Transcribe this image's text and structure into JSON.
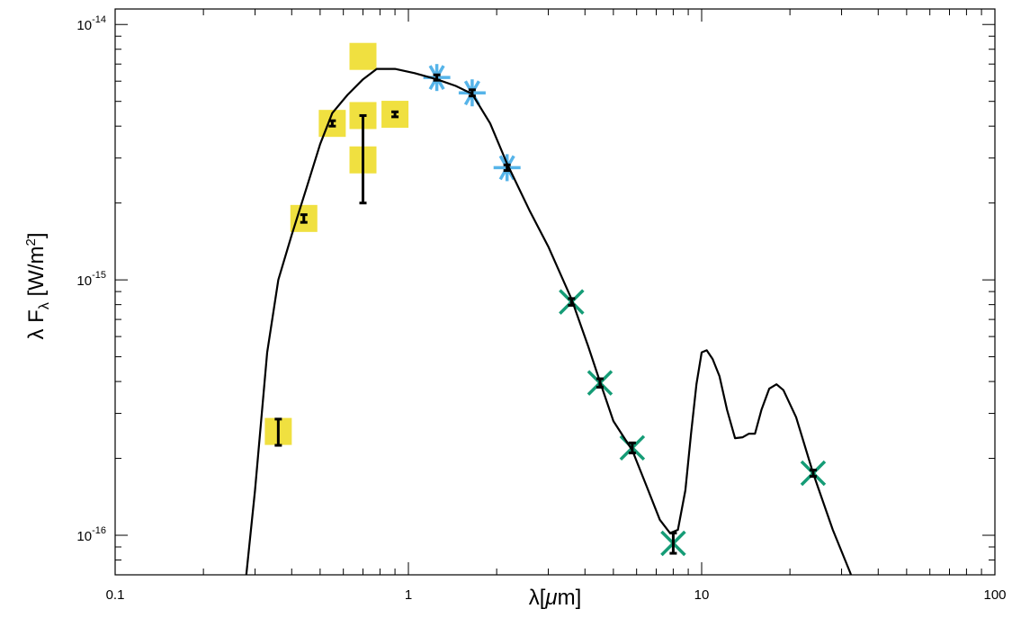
{
  "chart_data": {
    "type": "scatter",
    "xscale": "log",
    "yscale": "log",
    "xlim": [
      0.1,
      100
    ],
    "ylim": [
      7e-17,
      1.15e-14
    ],
    "grid": false,
    "legend": "none",
    "xlabel": {
      "base": "λ[",
      "mu": "μ",
      "rest": "m]"
    },
    "ylabel": {
      "lambda": "λ F",
      "sub": "λ",
      "open": " [W/m",
      "sup": "2",
      "close": "]"
    },
    "x_ticks": [
      {
        "value": 0.1,
        "label": "0.1"
      },
      {
        "value": 1,
        "label": "1"
      },
      {
        "value": 10,
        "label": "10"
      },
      {
        "value": 100,
        "label": "100"
      }
    ],
    "y_ticks": [
      {
        "value": 1e-14,
        "base": "10",
        "exp": "-14"
      },
      {
        "value": 1e-15,
        "base": "10",
        "exp": "-15"
      },
      {
        "value": 1e-16,
        "base": "10",
        "exp": "-16"
      }
    ],
    "colors": {
      "optical": "#f0e040",
      "nir": "#56b4e9",
      "mir": "#159c76",
      "model": "#000000"
    },
    "series": [
      {
        "marker": "square",
        "color": "#f0e040",
        "points": [
          {
            "x": 0.36,
            "y": 2.55e-16,
            "ylo": 2.25e-16,
            "yhi": 2.85e-16
          },
          {
            "x": 0.44,
            "y": 1.74e-15,
            "ylo": 1.68e-15,
            "yhi": 1.8e-15
          },
          {
            "x": 0.55,
            "y": 4.1e-15,
            "ylo": 4e-15,
            "yhi": 4.2e-15
          },
          {
            "x": 0.7,
            "y": 7.5e-15
          },
          {
            "x": 0.7,
            "y": 4.4e-15,
            "ylo": 2e-15,
            "yhi": 4.4e-15
          },
          {
            "x": 0.7,
            "y": 2.95e-15
          },
          {
            "x": 0.9,
            "y": 4.45e-15,
            "ylo": 4.35e-15,
            "yhi": 4.55e-15
          }
        ]
      },
      {
        "marker": "asterisk",
        "color": "#56b4e9",
        "points": [
          {
            "x": 1.25,
            "y": 6.2e-15,
            "ylo": 6.05e-15,
            "yhi": 6.35e-15
          },
          {
            "x": 1.65,
            "y": 5.4e-15,
            "ylo": 5.25e-15,
            "yhi": 5.55e-15
          },
          {
            "x": 2.17,
            "y": 2.75e-15,
            "ylo": 2.68e-15,
            "yhi": 2.82e-15
          }
        ]
      },
      {
        "marker": "x",
        "color": "#159c76",
        "points": [
          {
            "x": 3.6,
            "y": 8.2e-16,
            "ylo": 7.95e-16,
            "yhi": 8.45e-16
          },
          {
            "x": 4.5,
            "y": 3.95e-16,
            "ylo": 3.8e-16,
            "yhi": 4.1e-16
          },
          {
            "x": 5.8,
            "y": 2.2e-16,
            "ylo": 2.1e-16,
            "yhi": 2.3e-16
          },
          {
            "x": 8.0,
            "y": 9.3e-17,
            "ylo": 8.5e-17,
            "yhi": 1.02e-16
          },
          {
            "x": 24.0,
            "y": 1.75e-16,
            "ylo": 1.7e-16,
            "yhi": 1.8e-16
          }
        ]
      }
    ],
    "model_curve": [
      [
        0.265,
        4e-17
      ],
      [
        0.28,
        7e-17
      ],
      [
        0.3,
        1.5e-16
      ],
      [
        0.33,
        5.2e-16
      ],
      [
        0.36,
        1e-15
      ],
      [
        0.4,
        1.5e-15
      ],
      [
        0.45,
        2.3e-15
      ],
      [
        0.5,
        3.4e-15
      ],
      [
        0.55,
        4.5e-15
      ],
      [
        0.62,
        5.3e-15
      ],
      [
        0.7,
        6.1e-15
      ],
      [
        0.78,
        6.7e-15
      ],
      [
        0.9,
        6.7e-15
      ],
      [
        1.05,
        6.45e-15
      ],
      [
        1.25,
        6.1e-15
      ],
      [
        1.45,
        5.75e-15
      ],
      [
        1.65,
        5.35e-15
      ],
      [
        1.9,
        4.1e-15
      ],
      [
        2.17,
        2.85e-15
      ],
      [
        2.6,
        1.85e-15
      ],
      [
        3.0,
        1.35e-15
      ],
      [
        3.6,
        8.4e-16
      ],
      [
        4.1,
        5.5e-16
      ],
      [
        4.5,
        4e-16
      ],
      [
        5.0,
        2.8e-16
      ],
      [
        5.8,
        2.15e-16
      ],
      [
        6.5,
        1.55e-16
      ],
      [
        7.2,
        1.15e-16
      ],
      [
        7.8,
        1.02e-16
      ],
      [
        8.3,
        1.05e-16
      ],
      [
        8.8,
        1.5e-16
      ],
      [
        9.2,
        2.5e-16
      ],
      [
        9.6,
        3.9e-16
      ],
      [
        10.0,
        5.2e-16
      ],
      [
        10.4,
        5.3e-16
      ],
      [
        10.9,
        4.9e-16
      ],
      [
        11.5,
        4.2e-16
      ],
      [
        12.2,
        3.1e-16
      ],
      [
        13.0,
        2.4e-16
      ],
      [
        13.8,
        2.42e-16
      ],
      [
        14.5,
        2.5e-16
      ],
      [
        15.2,
        2.5e-16
      ],
      [
        16.0,
        3.1e-16
      ],
      [
        17.0,
        3.75e-16
      ],
      [
        18.0,
        3.9e-16
      ],
      [
        19.0,
        3.7e-16
      ],
      [
        21.0,
        2.9e-16
      ],
      [
        24.0,
        1.75e-16
      ],
      [
        28.0,
        1.05e-16
      ],
      [
        32.0,
        7.2e-17
      ],
      [
        35.0,
        5.5e-17
      ]
    ]
  }
}
